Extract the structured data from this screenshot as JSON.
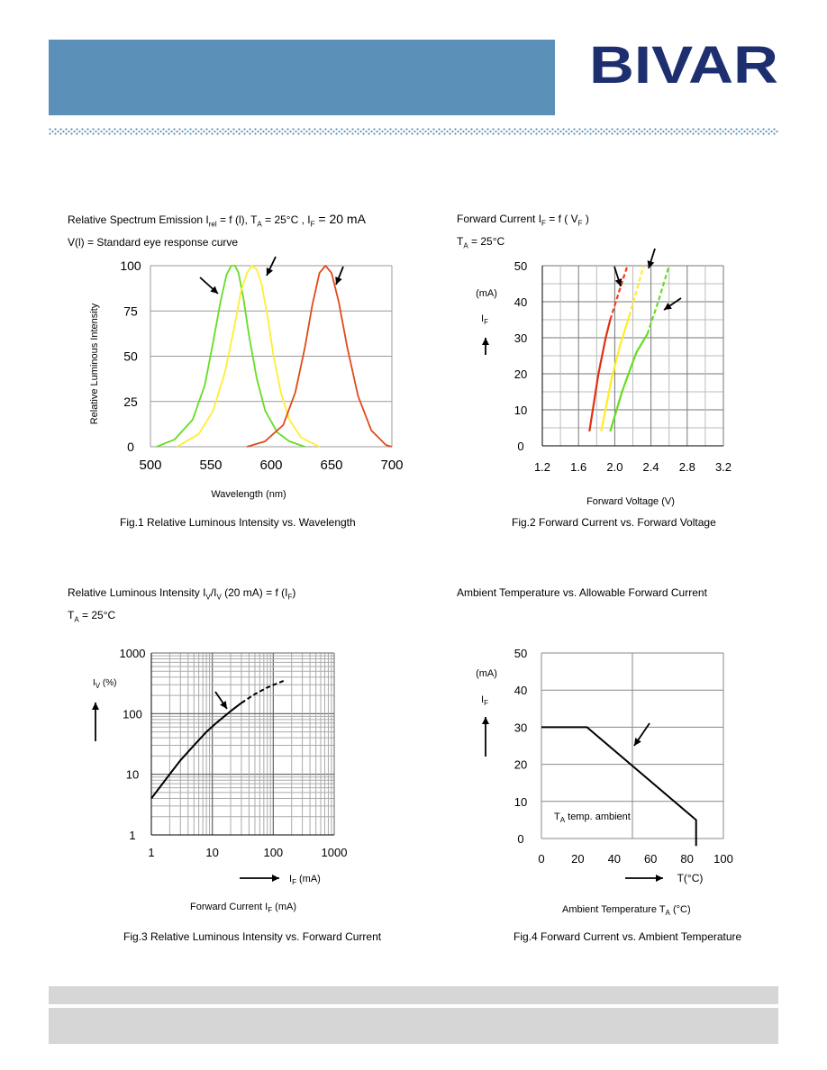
{
  "header": {
    "logo_text": "BIVAR",
    "band_color": "#5b90b9",
    "logo_color": "#1d2f6f"
  },
  "figures": {
    "fig1": {
      "title_line1": "Relative Spectrum Emission I",
      "title_sub1": "rel",
      "title_line1b": " = f (l), T",
      "title_sub2": "A",
      "title_line1c": " = 25°C , I",
      "title_sub3": "F",
      "title_line1d": " = 20 mA",
      "title_line2": "V(l) = Standard eye response curve",
      "caption": "Fig.1 Relative Luminous Intensity vs. Wavelength"
    },
    "fig2": {
      "title_line1": "Forward Current I",
      "title_sub1": "F",
      "title_line1b": " = f ( V",
      "title_sub2": "F",
      "title_line1c": " )",
      "title_line2": "T",
      "title_sub3": "A",
      "title_line2b": " = 25°C",
      "caption": "Fig.2 Forward Current vs. Forward Voltage"
    },
    "fig3": {
      "title_line1": "Relative Luminous Intensity I",
      "title_sub1": "V",
      "title_line1b": "/I",
      "title_sub2": "V",
      "title_line1c": " (20 mA) = f (I",
      "title_sub3": "F",
      "title_line1d": ")",
      "title_line2": "T",
      "title_sub4": "A",
      "title_line2b": " = 25°C",
      "caption": "Fig.3 Relative Luminous Intensity vs. Forward Current"
    },
    "fig4": {
      "title_line1": "Ambient Temperature vs. Allowable Forward Current",
      "caption": "Fig.4 Forward Current vs. Ambient Temperature"
    }
  },
  "chart_data": [
    {
      "type": "line",
      "xlabel": "Wavelength (nm)",
      "ylabel": "Relative Luminous Intensity",
      "xlim": [
        500,
        700
      ],
      "ylim": [
        0,
        100
      ],
      "xticks": [
        "500",
        "550",
        "600",
        "650",
        "700"
      ],
      "yticks": [
        "0",
        "25",
        "50",
        "75",
        "100"
      ],
      "grid": "horizontal",
      "series": [
        {
          "color": "#66dd22",
          "x": [
            505,
            520,
            535,
            545,
            552,
            558,
            563,
            567,
            570,
            573,
            577,
            582,
            588,
            595,
            605,
            615,
            628
          ],
          "y": [
            0,
            4,
            15,
            34,
            58,
            80,
            95,
            100,
            100,
            96,
            82,
            60,
            38,
            20,
            8,
            3,
            0
          ]
        },
        {
          "color": "#ffee33",
          "x": [
            522,
            540,
            552,
            562,
            570,
            575,
            580,
            584,
            588,
            592,
            597,
            602,
            608,
            615,
            625,
            640
          ],
          "y": [
            0,
            7,
            20,
            42,
            68,
            86,
            96,
            100,
            98,
            90,
            72,
            50,
            30,
            15,
            5,
            0
          ]
        },
        {
          "color": "#e04a1a",
          "x": [
            580,
            595,
            610,
            620,
            628,
            634,
            640,
            645,
            650,
            656,
            663,
            672,
            683,
            695,
            700
          ],
          "y": [
            0,
            3,
            12,
            30,
            55,
            78,
            96,
            100,
            96,
            80,
            55,
            28,
            9,
            1,
            0
          ]
        }
      ]
    },
    {
      "type": "line",
      "xlabel": "Forward Voltage (V)",
      "ylabel": "(mA)",
      "yunit_symbol": "I",
      "yunit_sub": "F",
      "xlim": [
        1.2,
        3.2
      ],
      "ylim": [
        0,
        50
      ],
      "xticks": [
        "1.2",
        "1.6",
        "2.0",
        "2.4",
        "2.8",
        "3.2"
      ],
      "yticks": [
        "0",
        "10",
        "20",
        "30",
        "40",
        "50"
      ],
      "grid": "both",
      "series": [
        {
          "color": "#e03010",
          "x": [
            1.72,
            1.82,
            1.9,
            1.95
          ],
          "y": [
            4,
            20,
            30,
            35
          ]
        },
        {
          "color": "#ff3a1a",
          "dashed": true,
          "x": [
            1.95,
            2.05,
            2.14
          ],
          "y": [
            35,
            43,
            50
          ]
        },
        {
          "color": "#ffee22",
          "x": [
            1.85,
            1.96,
            2.06,
            2.16
          ],
          "y": [
            4,
            18,
            28,
            36
          ]
        },
        {
          "color": "#ffee22",
          "dashed": true,
          "x": [
            2.16,
            2.24,
            2.32
          ],
          "y": [
            36,
            43,
            50
          ]
        },
        {
          "color": "#66dd22",
          "x": [
            1.95,
            2.08,
            2.24,
            2.36
          ],
          "y": [
            4,
            15,
            26,
            31
          ]
        },
        {
          "color": "#66dd22",
          "dashed": true,
          "x": [
            2.36,
            2.48,
            2.6
          ],
          "y": [
            31,
            40,
            50
          ]
        }
      ]
    },
    {
      "type": "line",
      "xlabel": "Forward Current I_F (mA)",
      "xlabel_text": "Forward Current I",
      "xlabel_sub": "F",
      "xlabel_tail": " (mA)",
      "axis_x_label": "I",
      "axis_x_sub": "F",
      "axis_x_tail": " (mA)",
      "ylabel": "I",
      "ylabel_sub": "V",
      "ylabel_tail": " (%)",
      "xscale": "log",
      "yscale": "log",
      "xlim": [
        1,
        1000
      ],
      "ylim": [
        1,
        1000
      ],
      "xticks": [
        "1",
        "10",
        "100",
        "1000"
      ],
      "yticks": [
        "1",
        "10",
        "100",
        "1000"
      ],
      "grid": "both",
      "series": [
        {
          "color": "#000000",
          "x": [
            1,
            2,
            3,
            5,
            8,
            12,
            20,
            30
          ],
          "y": [
            4,
            10,
            17,
            30,
            50,
            72,
            110,
            150
          ]
        },
        {
          "color": "#000000",
          "dashed": true,
          "x": [
            30,
            50,
            80,
            150
          ],
          "y": [
            150,
            210,
            270,
            350
          ]
        }
      ]
    },
    {
      "type": "line",
      "xlabel": "Ambient Temperature T_A (°C)",
      "xlabel_text": "Ambient Temperature T",
      "xlabel_sub": "A",
      "xlabel_tail": " (°C)",
      "axis_x_label": "T(°C)",
      "ylabel": "(mA)",
      "yunit_symbol": "I",
      "yunit_sub": "F",
      "annotation": "T",
      "annotation_sub": "A",
      "annotation_tail": " temp. ambient",
      "xlim": [
        0,
        100
      ],
      "ylim": [
        0,
        50
      ],
      "xticks": [
        "0",
        "20",
        "40",
        "60",
        "80",
        "100"
      ],
      "yticks": [
        "0",
        "10",
        "20",
        "30",
        "40",
        "50"
      ],
      "grid": "both",
      "series": [
        {
          "color": "#000000",
          "x": [
            0,
            25,
            85,
            85
          ],
          "y": [
            30,
            30,
            5,
            -2
          ]
        }
      ]
    }
  ]
}
